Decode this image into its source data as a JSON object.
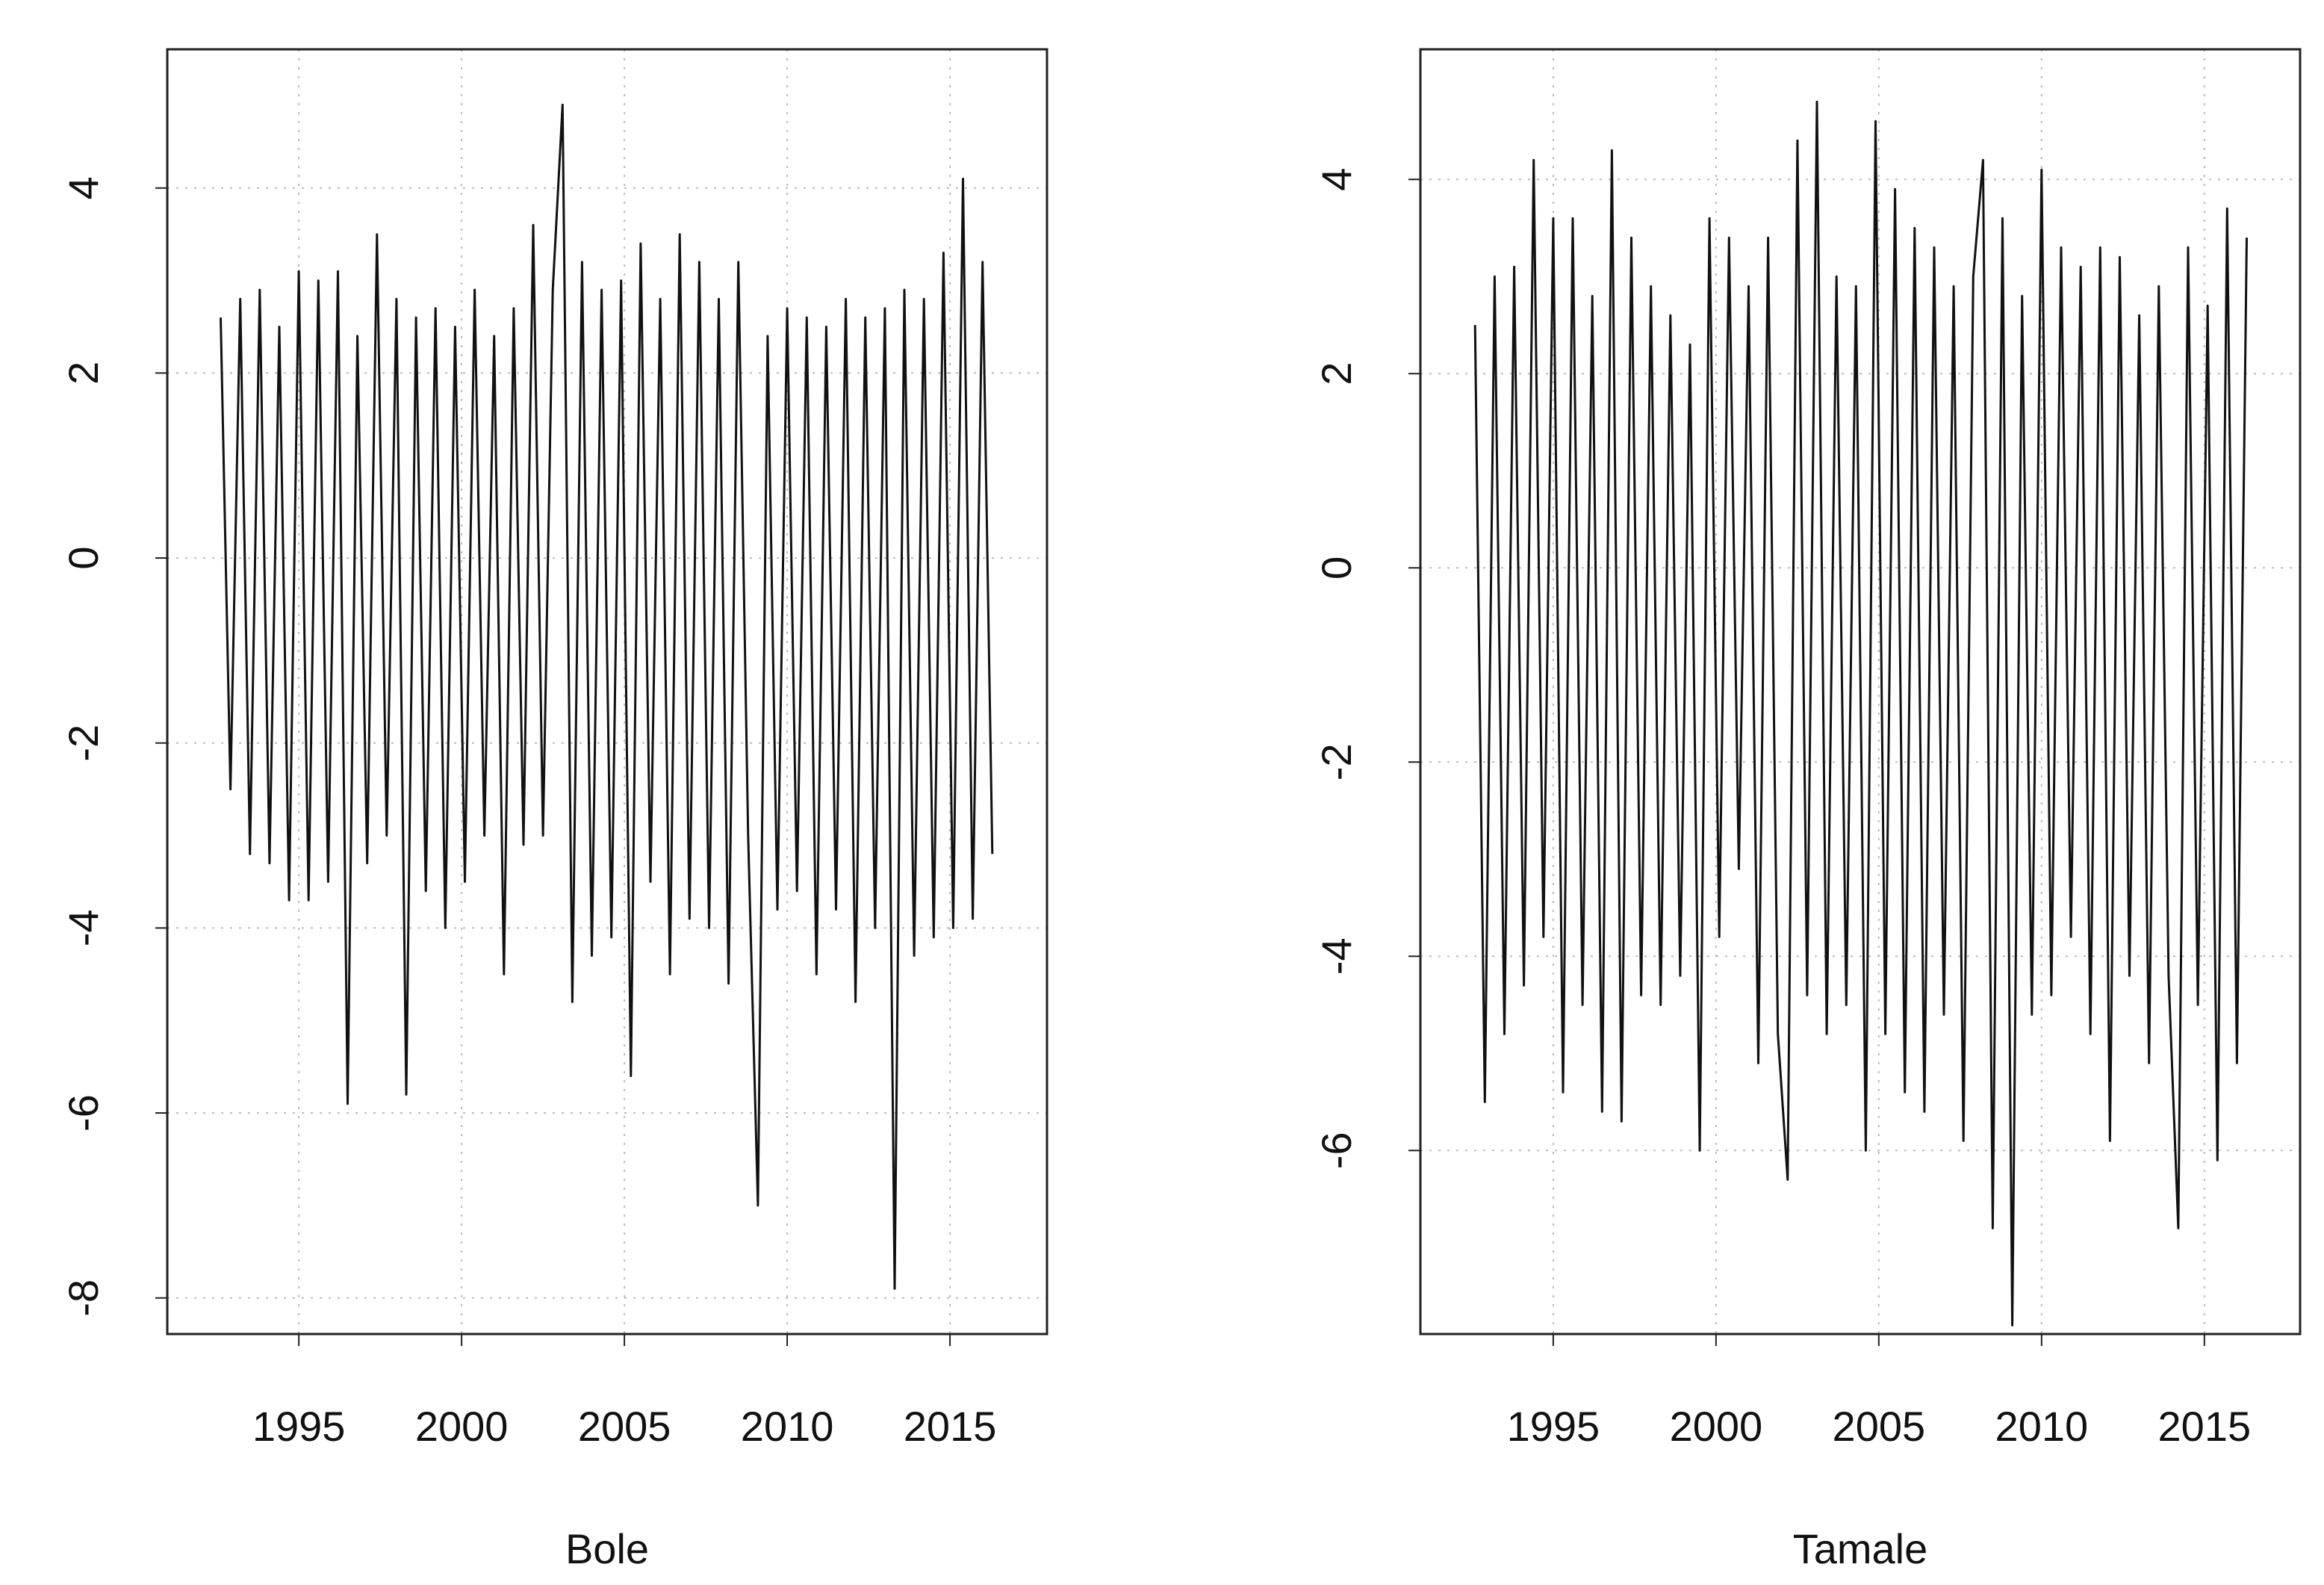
{
  "chart_data": [
    {
      "type": "line",
      "xlabel": "Bole",
      "color": "#111111",
      "grid": true,
      "xlim": [
        1990.96,
        2017.98
      ],
      "ylim": [
        -8.39,
        5.5
      ],
      "xticks": [
        1995,
        2000,
        2005,
        2010,
        2015
      ],
      "yticks": [
        -8,
        -6,
        -4,
        -2,
        0,
        2,
        4
      ],
      "x": [
        1992.6,
        1992.9,
        1993.2,
        1993.5,
        1993.8,
        1994.1,
        1994.4,
        1994.7,
        1995,
        1995.3,
        1995.6,
        1995.9,
        1996.2,
        1996.5,
        1996.8,
        1997.1,
        1997.4,
        1997.7,
        1998,
        1998.3,
        1998.6,
        1998.9,
        1999.2,
        1999.5,
        1999.8,
        2000.1,
        2000.4,
        2000.7,
        2001,
        2001.3,
        2001.6,
        2001.9,
        2002.2,
        2002.5,
        2002.8,
        2003.1,
        2003.4,
        2003.7,
        2004,
        2004.3,
        2004.6,
        2004.9,
        2005.2,
        2005.5,
        2005.8,
        2006.1,
        2006.4,
        2006.7,
        2007,
        2007.3,
        2007.6,
        2007.9,
        2008.2,
        2008.5,
        2008.8,
        2009.1,
        2009.4,
        2009.7,
        2010,
        2010.3,
        2010.6,
        2010.9,
        2011.2,
        2011.5,
        2011.8,
        2012.1,
        2012.4,
        2012.7,
        2013,
        2013.3,
        2013.6,
        2013.9,
        2014.2,
        2014.5,
        2014.8,
        2015.1,
        2015.4,
        2015.7,
        2016,
        2016.3
      ],
      "values": [
        2.6,
        -2.5,
        2.8,
        -3.2,
        2.9,
        -3.3,
        2.5,
        -3.7,
        3.1,
        -3.7,
        3.0,
        -3.5,
        3.1,
        -5.9,
        2.4,
        -3.3,
        3.5,
        -3.0,
        2.8,
        -5.8,
        2.6,
        -3.6,
        2.7,
        -4.0,
        2.5,
        -3.5,
        2.9,
        -3.0,
        2.4,
        -4.5,
        2.7,
        -3.1,
        3.6,
        -3.0,
        2.9,
        4.9,
        -4.8,
        3.2,
        -4.3,
        2.9,
        -4.1,
        3.0,
        -5.6,
        3.4,
        -3.5,
        2.8,
        -4.5,
        3.5,
        -3.9,
        3.2,
        -4.0,
        2.8,
        -4.6,
        3.2,
        -3.0,
        -7.0,
        2.4,
        -3.8,
        2.7,
        -3.6,
        2.6,
        -4.5,
        2.5,
        -3.8,
        2.8,
        -4.8,
        2.6,
        -4.0,
        2.7,
        -7.9,
        2.9,
        -4.3,
        2.8,
        -4.1,
        3.3,
        -4.0,
        4.1,
        -3.9,
        3.2,
        -3.2
      ]
    },
    {
      "type": "line",
      "xlabel": "Tamale",
      "color": "#111111",
      "grid": true,
      "xlim": [
        1990.92,
        2017.94
      ],
      "ylim": [
        -7.89,
        5.34
      ],
      "xticks": [
        1995,
        2000,
        2005,
        2010,
        2015
      ],
      "yticks": [
        -6,
        -4,
        -2,
        0,
        2,
        4
      ],
      "x": [
        1992.6,
        1992.9,
        1993.2,
        1993.5,
        1993.8,
        1994.1,
        1994.4,
        1994.7,
        1995,
        1995.3,
        1995.6,
        1995.9,
        1996.2,
        1996.5,
        1996.8,
        1997.1,
        1997.4,
        1997.7,
        1998,
        1998.3,
        1998.6,
        1998.9,
        1999.2,
        1999.5,
        1999.8,
        2000.1,
        2000.4,
        2000.7,
        2001,
        2001.3,
        2001.6,
        2001.9,
        2002.2,
        2002.5,
        2002.8,
        2003.1,
        2003.4,
        2003.7,
        2004,
        2004.3,
        2004.6,
        2004.9,
        2005.2,
        2005.5,
        2005.8,
        2006.1,
        2006.4,
        2006.7,
        2007,
        2007.3,
        2007.6,
        2007.9,
        2008.2,
        2008.5,
        2008.8,
        2009.1,
        2009.4,
        2009.7,
        2010,
        2010.3,
        2010.6,
        2010.9,
        2011.2,
        2011.5,
        2011.8,
        2012.1,
        2012.4,
        2012.7,
        2013,
        2013.3,
        2013.6,
        2013.9,
        2014.2,
        2014.5,
        2014.8,
        2015.1,
        2015.4,
        2015.7,
        2016,
        2016.3
      ],
      "values": [
        2.5,
        -5.5,
        3.0,
        -4.8,
        3.1,
        -4.3,
        4.2,
        -3.8,
        3.6,
        -5.4,
        3.6,
        -4.5,
        2.8,
        -5.6,
        4.3,
        -5.7,
        3.4,
        -4.4,
        2.9,
        -4.5,
        2.6,
        -4.2,
        2.3,
        -6.0,
        3.6,
        -3.8,
        3.4,
        -3.1,
        2.9,
        -5.1,
        3.4,
        -4.8,
        -6.3,
        4.4,
        -4.4,
        4.8,
        -4.8,
        3.0,
        -4.5,
        2.9,
        -6.0,
        4.6,
        -4.8,
        3.9,
        -5.4,
        3.5,
        -5.6,
        3.3,
        -4.6,
        2.9,
        -5.9,
        3.0,
        4.2,
        -6.8,
        3.6,
        -7.8,
        2.8,
        -4.6,
        4.1,
        -4.4,
        3.3,
        -3.8,
        3.1,
        -4.8,
        3.3,
        -5.9,
        3.2,
        -4.2,
        2.6,
        -5.1,
        2.9,
        -4.2,
        -6.8,
        3.3,
        -4.5,
        2.7,
        -6.1,
        3.7,
        -5.1,
        3.4
      ]
    }
  ]
}
